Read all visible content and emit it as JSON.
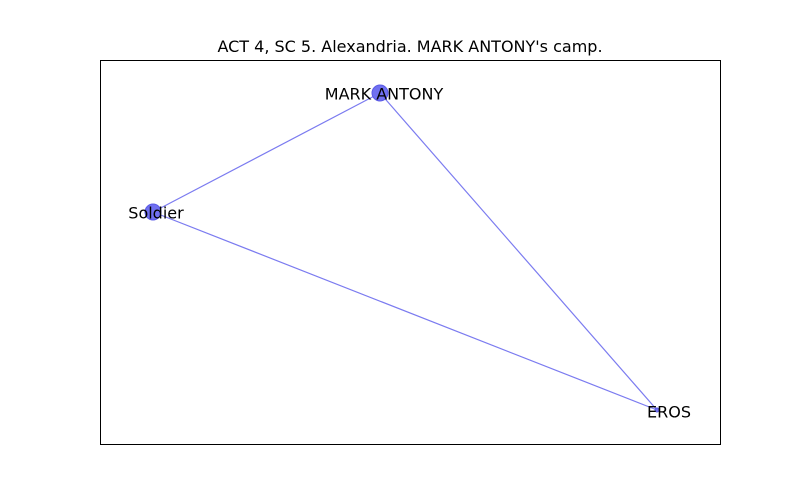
{
  "title": "ACT 4, SC 5. Alexandria. MARK ANTONY's camp.",
  "colors": {
    "node_fill": "#7070f0",
    "node_stroke": "#5a5ae6",
    "edge": "#7b7bf0",
    "frame": "#000000"
  },
  "graph": {
    "nodes": [
      {
        "id": "mark-antony",
        "label": "MARK ANTONY"
      },
      {
        "id": "soldier",
        "label": "Soldier"
      },
      {
        "id": "eros",
        "label": "EROS"
      }
    ],
    "edges": [
      {
        "source": "mark-antony",
        "target": "soldier"
      },
      {
        "source": "mark-antony",
        "target": "eros"
      },
      {
        "source": "soldier",
        "target": "eros"
      }
    ]
  }
}
